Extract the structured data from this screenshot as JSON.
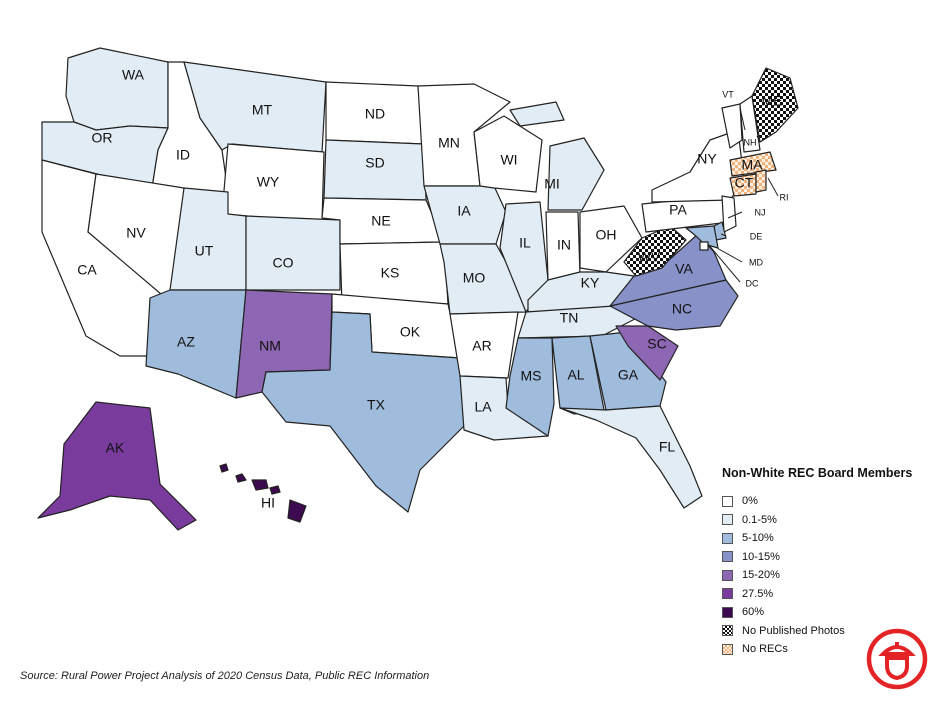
{
  "legend": {
    "title": "Non-White REC Board Members",
    "items": [
      {
        "label": "0%",
        "color": "#ffffff",
        "pattern": "none"
      },
      {
        "label": "0.1-5%",
        "color": "#e1ecf4",
        "pattern": "none"
      },
      {
        "label": "5-10%",
        "color": "#9fbcdc",
        "pattern": "none"
      },
      {
        "label": "10-15%",
        "color": "#8892c9",
        "pattern": "none"
      },
      {
        "label": "15-20%",
        "color": "#8e67b4",
        "pattern": "none"
      },
      {
        "label": "27.5%",
        "color": "#7a3c9c",
        "pattern": "none"
      },
      {
        "label": "60%",
        "color": "#3d0a50",
        "pattern": "none"
      },
      {
        "label": "No Published Photos",
        "color": "#000000",
        "pattern": "checker"
      },
      {
        "label": "No RECs",
        "color": "#f2b27c",
        "pattern": "checker-light"
      }
    ]
  },
  "states": {
    "WA": "0.1-5%",
    "OR": "0.1-5%",
    "CA": "0%",
    "ID": "0%",
    "NV": "0%",
    "MT": "0.1-5%",
    "WY": "0%",
    "UT": "0.1-5%",
    "AZ": "5-10%",
    "CO": "0.1-5%",
    "NM": "15-20%",
    "ND": "0%",
    "SD": "0.1-5%",
    "NE": "0%",
    "KS": "0%",
    "OK": "0%",
    "TX": "5-10%",
    "MN": "0%",
    "IA": "0.1-5%",
    "MO": "0.1-5%",
    "AR": "0%",
    "LA": "0.1-5%",
    "WI": "0%",
    "IL": "0.1-5%",
    "MI": "0.1-5%",
    "IN": "0%",
    "OH": "0%",
    "KY": "0.1-5%",
    "TN": "0.1-5%",
    "MS": "5-10%",
    "AL": "5-10%",
    "GA": "5-10%",
    "FL": "0.1-5%",
    "SC": "15-20%",
    "NC": "10-15%",
    "VA": "10-15%",
    "WV": "No Published Photos",
    "PA": "0%",
    "NY": "0%",
    "VT": "0%",
    "NH": "0%",
    "ME": "No Published Photos",
    "MA": "No RECs",
    "CT": "No RECs",
    "RI": "No RECs",
    "NJ": "0%",
    "DE": "5-10%",
    "MD": "5-10%",
    "DC": "0%",
    "AK": "27.5%",
    "HI": "60%"
  },
  "source": "Source: Rural Power Project Analysis of 2020 Census Data, Public REC Information"
}
